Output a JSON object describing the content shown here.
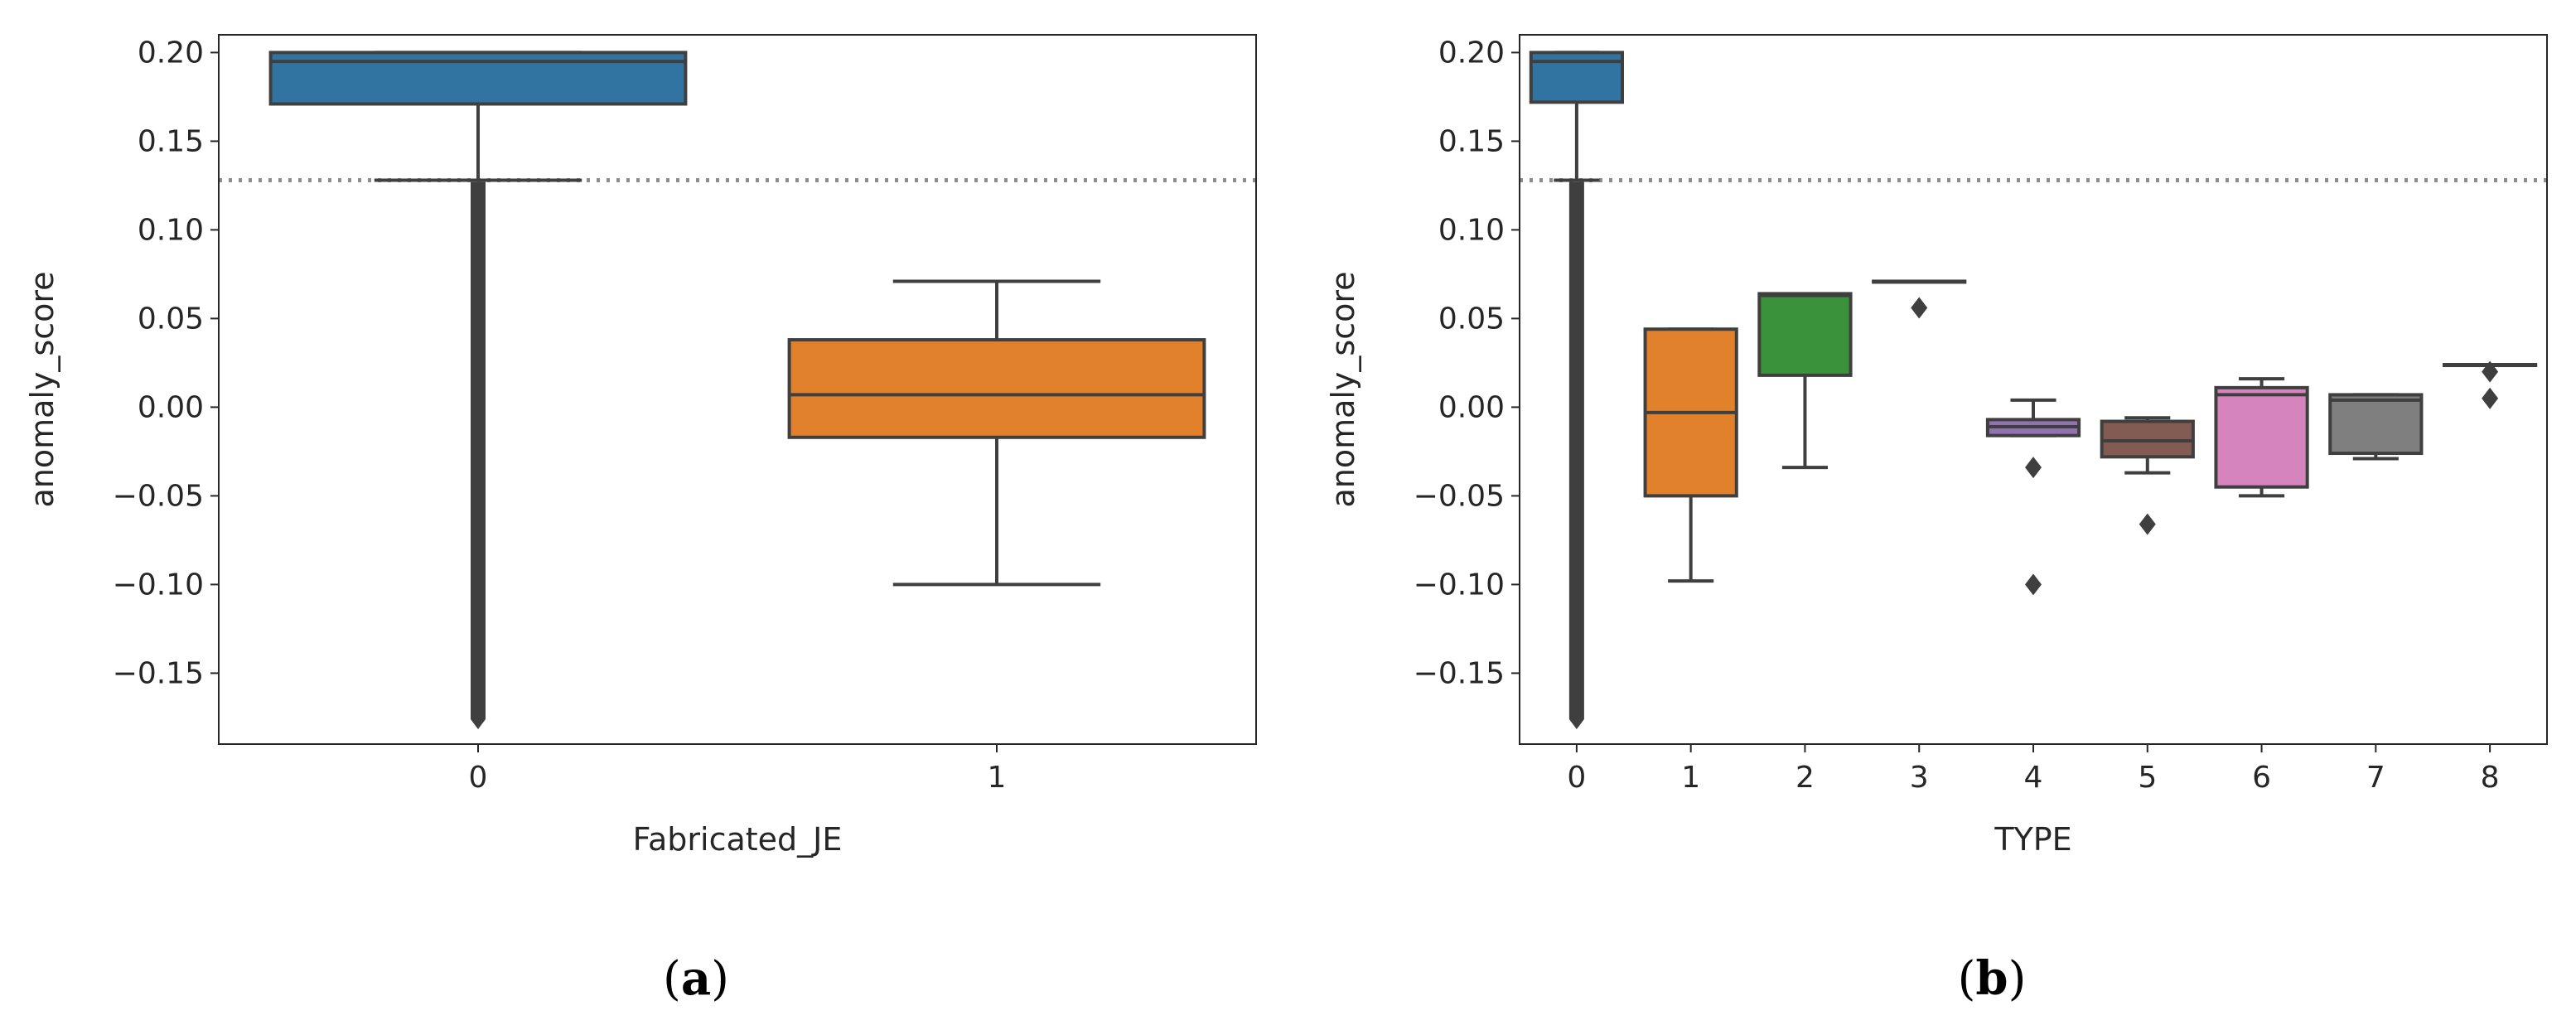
{
  "chart_data": [
    {
      "type": "box",
      "panel_label": "a",
      "xlabel": "Fabricated_JE",
      "ylabel": "anomaly_score",
      "ylim": [
        -0.19,
        0.21
      ],
      "yticks": [
        -0.15,
        -0.1,
        -0.05,
        0.0,
        0.05,
        0.1,
        0.15,
        0.2
      ],
      "ytick_labels": [
        "−0.15",
        "−0.10",
        "−0.05",
        "0.00",
        "0.05",
        "0.10",
        "0.15",
        "0.20"
      ],
      "threshold": 0.128,
      "categories": [
        "0",
        "1"
      ],
      "boxes": [
        {
          "category": "0",
          "q1": 0.171,
          "median": 0.195,
          "q3": 0.2,
          "whisker_low": 0.128,
          "whisker_high": 0.2,
          "color": "#3274a1",
          "outlier_range": [
            -0.176,
            0.127
          ]
        },
        {
          "category": "1",
          "q1": -0.017,
          "median": 0.007,
          "q3": 0.038,
          "whisker_low": -0.1,
          "whisker_high": 0.071,
          "color": "#e1812c",
          "outliers": []
        }
      ]
    },
    {
      "type": "box",
      "panel_label": "b",
      "xlabel": "TYPE",
      "ylabel": "anomaly_score",
      "ylim": [
        -0.19,
        0.21
      ],
      "yticks": [
        -0.15,
        -0.1,
        -0.05,
        0.0,
        0.05,
        0.1,
        0.15,
        0.2
      ],
      "ytick_labels": [
        "−0.15",
        "−0.10",
        "−0.05",
        "0.00",
        "0.05",
        "0.10",
        "0.15",
        "0.20"
      ],
      "threshold": 0.128,
      "categories": [
        "0",
        "1",
        "2",
        "3",
        "4",
        "5",
        "6",
        "7",
        "8"
      ],
      "boxes": [
        {
          "category": "0",
          "q1": 0.172,
          "median": 0.195,
          "q3": 0.2,
          "whisker_low": 0.128,
          "whisker_high": 0.2,
          "color": "#3274a1",
          "outlier_range": [
            -0.176,
            0.127
          ]
        },
        {
          "category": "1",
          "q1": -0.05,
          "median": -0.003,
          "q3": 0.044,
          "whisker_low": -0.098,
          "whisker_high": 0.044,
          "color": "#e1812c",
          "outliers": []
        },
        {
          "category": "2",
          "q1": 0.018,
          "median": 0.063,
          "q3": 0.064,
          "whisker_low": -0.034,
          "whisker_high": 0.064,
          "color": "#3a923a",
          "outliers": []
        },
        {
          "category": "3",
          "q1": 0.071,
          "median": 0.071,
          "q3": 0.071,
          "whisker_low": 0.071,
          "whisker_high": 0.071,
          "color": "#c03d3e",
          "outliers": [
            0.056
          ]
        },
        {
          "category": "4",
          "q1": -0.016,
          "median": -0.011,
          "q3": -0.007,
          "whisker_low": -0.016,
          "whisker_high": 0.004,
          "color": "#9372b2",
          "outliers": [
            -0.034,
            -0.1
          ]
        },
        {
          "category": "5",
          "q1": -0.028,
          "median": -0.019,
          "q3": -0.008,
          "whisker_low": -0.037,
          "whisker_high": -0.006,
          "color": "#845b53",
          "outliers": [
            -0.066
          ]
        },
        {
          "category": "6",
          "q1": -0.045,
          "median": 0.007,
          "q3": 0.011,
          "whisker_low": -0.05,
          "whisker_high": 0.016,
          "color": "#d684bd",
          "outliers": []
        },
        {
          "category": "7",
          "q1": -0.026,
          "median": 0.004,
          "q3": 0.007,
          "whisker_low": -0.029,
          "whisker_high": 0.007,
          "color": "#7f7f7f",
          "outliers": []
        },
        {
          "category": "8",
          "q1": 0.024,
          "median": 0.024,
          "q3": 0.024,
          "whisker_low": 0.024,
          "whisker_high": 0.024,
          "color": "#a9aa35",
          "outliers": [
            0.02,
            0.005
          ]
        }
      ]
    }
  ]
}
